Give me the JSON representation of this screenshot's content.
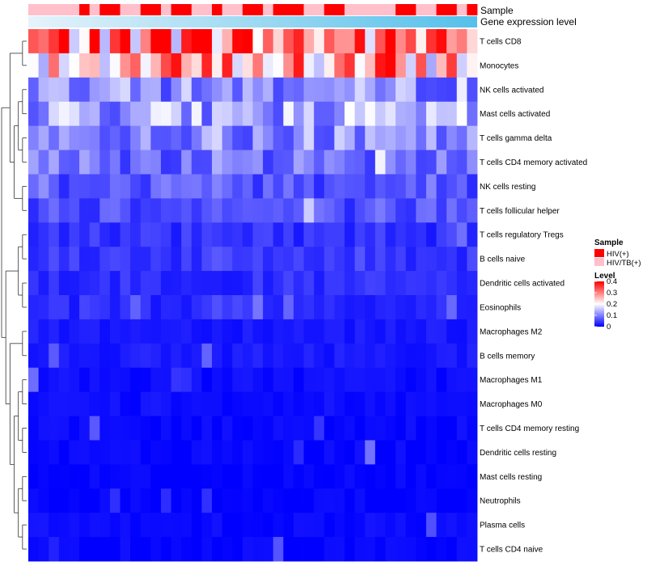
{
  "chart_data": {
    "type": "heatmap",
    "annotation_labels": [
      "Sample",
      "Gene expression level"
    ],
    "rows": [
      "T cells CD8",
      "Monocytes",
      "NK cells activated",
      "Mast cells activated",
      "T cells gamma delta",
      "T cells CD4 memory activated",
      "NK cells resting",
      "T cells follicular helper",
      "T cells regulatory  Tregs",
      "B cells naive",
      "Dendritic cells activated",
      "Eosinophils",
      "Macrophages M2",
      "B cells memory",
      "Macrophages M1",
      "Macrophages M0",
      "T cells CD4 memory resting",
      "Dendritic cells resting",
      "Mast cells resting",
      "Neutrophils",
      "Plasma cells",
      "T cells CD4 naive"
    ],
    "n_columns": 44,
    "sample_groups": [
      "HIV/TB(+)",
      "HIV/TB(+)",
      "HIV/TB(+)",
      "HIV/TB(+)",
      "HIV/TB(+)",
      "HIV(+)",
      "HIV/TB(+)",
      "HIV(+)",
      "HIV(+)",
      "HIV/TB(+)",
      "HIV/TB(+)",
      "HIV(+)",
      "HIV(+)",
      "HIV/TB(+)",
      "HIV(+)",
      "HIV(+)",
      "HIV/TB(+)",
      "HIV/TB(+)",
      "HIV(+)",
      "HIV/TB(+)",
      "HIV/TB(+)",
      "HIV(+)",
      "HIV(+)",
      "HIV/TB(+)",
      "HIV(+)",
      "HIV(+)",
      "HIV(+)",
      "HIV/TB(+)",
      "HIV/TB(+)",
      "HIV(+)",
      "HIV(+)",
      "HIV/TB(+)",
      "HIV/TB(+)",
      "HIV/TB(+)",
      "HIV/TB(+)",
      "HIV/TB(+)",
      "HIV(+)",
      "HIV(+)",
      "HIV/TB(+)",
      "HIV/TB(+)",
      "HIV(+)",
      "HIV(+)",
      "HIV/TB(+)",
      "HIV(+)"
    ],
    "row_means": [
      0.3,
      0.26,
      0.11,
      0.13,
      0.1,
      0.09,
      0.07,
      0.065,
      0.04,
      0.045,
      0.035,
      0.03,
      0.02,
      0.02,
      0.01,
      0.01,
      0.005,
      0.005,
      0.002,
      0.002,
      0.008,
      0.005
    ],
    "value_range": [
      0,
      0.4
    ],
    "legend": {
      "sample_title": "Sample",
      "sample_items": [
        {
          "label": "HIV(+)",
          "color": "#ff0000"
        },
        {
          "label": "HIV/TB(+)",
          "color": "#ffc0cb"
        }
      ],
      "level_title": "Level",
      "level_ticks": [
        "0.4",
        "0.3",
        "0.2",
        "0.1",
        "0"
      ],
      "level_values": [
        0.4,
        0.3,
        0.2,
        0.1,
        0
      ]
    },
    "colors": {
      "low": "#0000ff",
      "mid": "#ffffff",
      "high": "#ff0000",
      "expression_bar": "#66ccee"
    }
  }
}
